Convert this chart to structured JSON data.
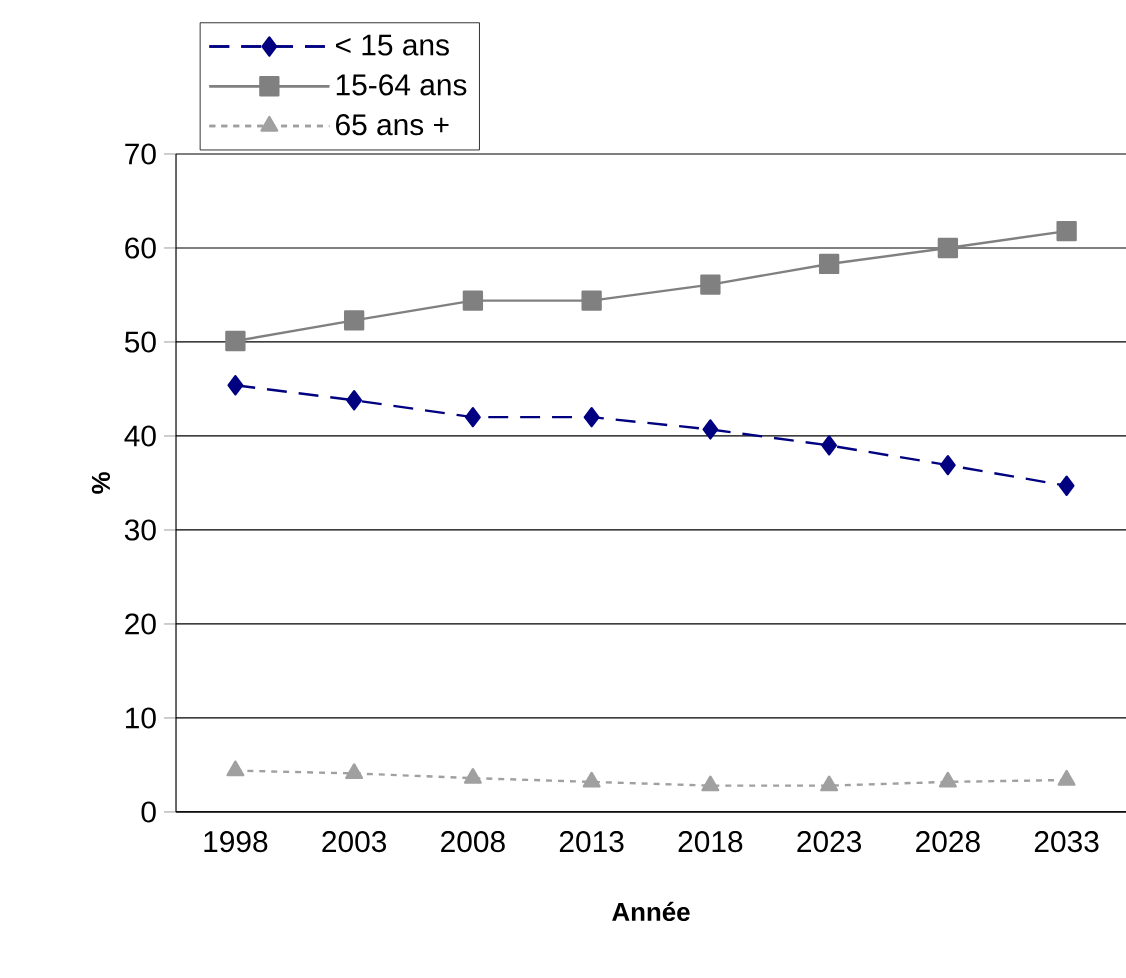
{
  "chart_data": {
    "type": "line",
    "xlabel": "Année",
    "ylabel": "%",
    "categories": [
      "1998",
      "2003",
      "2008",
      "2013",
      "2018",
      "2023",
      "2028",
      "2033"
    ],
    "series": [
      {
        "name": "< 15 ans",
        "color": "#000080",
        "marker": "diamond",
        "line_style": "dashed",
        "values": [
          45.4,
          43.8,
          42.0,
          42.0,
          40.7,
          39.0,
          36.9,
          34.7
        ]
      },
      {
        "name": "15-64 ans",
        "color": "#808080",
        "marker": "square",
        "line_style": "solid",
        "values": [
          50.1,
          52.3,
          54.4,
          54.4,
          56.1,
          58.3,
          60.0,
          61.8
        ]
      },
      {
        "name": "65 ans +",
        "color": "#a0a0a0",
        "marker": "triangle",
        "line_style": "dotted",
        "values": [
          4.4,
          4.1,
          3.6,
          3.2,
          2.8,
          2.8,
          3.2,
          3.4
        ]
      }
    ],
    "ylim": [
      0,
      70
    ],
    "yticks": [
      0,
      10,
      20,
      30,
      40,
      50,
      60,
      70
    ],
    "grid": "y",
    "legend": "top left"
  }
}
